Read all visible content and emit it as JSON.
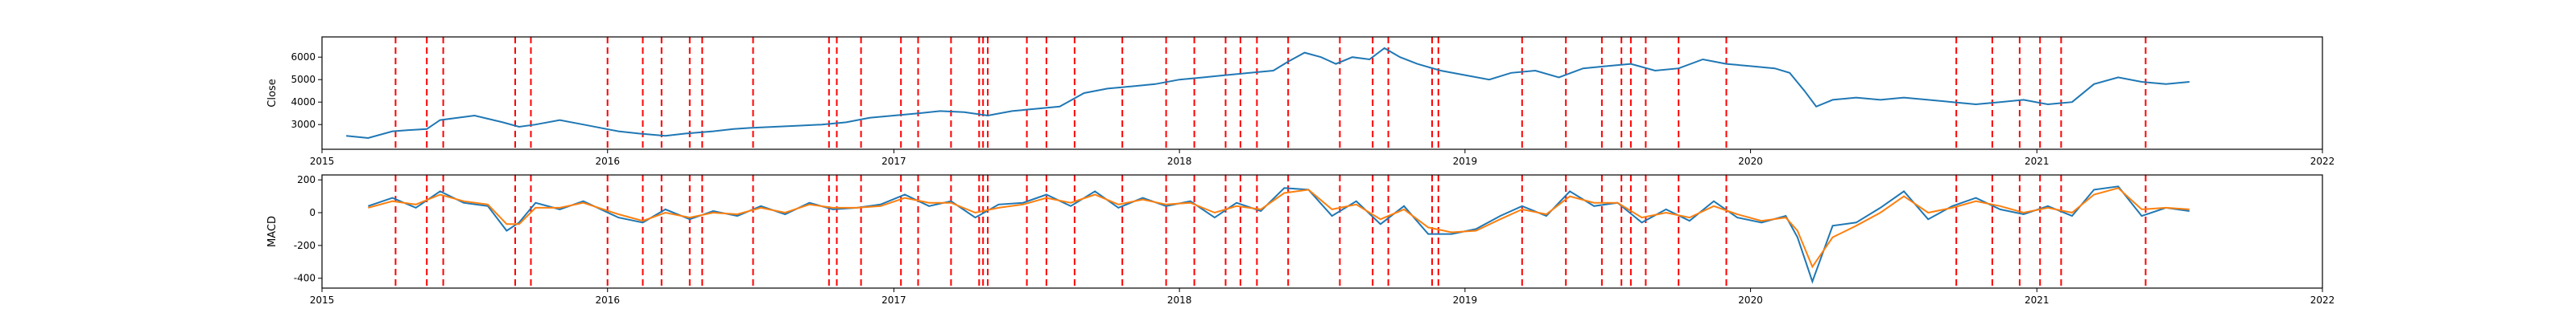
{
  "colors": {
    "close_line": "#1f77b4",
    "macd_line": "#1f77b4",
    "signal_line": "#ff7f0e",
    "event_marker": "#ff0000",
    "axes": "#000000"
  },
  "chart_data": [
    {
      "type": "line",
      "title": "",
      "xlabel": "",
      "ylabel": "Close",
      "xlim": [
        "2015-01-01",
        "2022-01-01"
      ],
      "ylim": [
        1900,
        6900
      ],
      "x_ticks": [
        "2015",
        "2016",
        "2017",
        "2018",
        "2019",
        "2020",
        "2021",
        "2022"
      ],
      "y_ticks": [
        3000,
        4000,
        5000,
        6000
      ],
      "grid": false,
      "series": [
        {
          "x": [
            "2015-02-01",
            "2015-03-01",
            "2015-04-01",
            "2015-04-20",
            "2015-05-15",
            "2015-06-01",
            "2015-07-15",
            "2015-08-20",
            "2015-09-10",
            "2015-10-01",
            "2015-11-01",
            "2015-12-01",
            "2016-01-15",
            "2016-02-10",
            "2016-03-15",
            "2016-04-10",
            "2016-05-15",
            "2016-06-10",
            "2016-07-01",
            "2016-08-01",
            "2016-09-01",
            "2016-10-01",
            "2016-11-01",
            "2016-12-01",
            "2017-01-01",
            "2017-02-01",
            "2017-03-01",
            "2017-04-01",
            "2017-05-01",
            "2017-06-01",
            "2017-07-01",
            "2017-08-01",
            "2017-09-01",
            "2017-10-01",
            "2017-11-01",
            "2017-12-01",
            "2018-01-01",
            "2018-02-01",
            "2018-03-01",
            "2018-04-01",
            "2018-05-01",
            "2018-05-20",
            "2018-06-10",
            "2018-07-01",
            "2018-07-20",
            "2018-08-10",
            "2018-09-01",
            "2018-09-20",
            "2018-10-10",
            "2018-11-01",
            "2018-12-01",
            "2019-01-01",
            "2019-02-01",
            "2019-03-01",
            "2019-04-01",
            "2019-05-01",
            "2019-06-01",
            "2019-07-01",
            "2019-08-01",
            "2019-09-01",
            "2019-10-01",
            "2019-11-01",
            "2019-12-01",
            "2020-01-01",
            "2020-02-01",
            "2020-02-20",
            "2020-03-10",
            "2020-03-25",
            "2020-04-15",
            "2020-05-15",
            "2020-06-15",
            "2020-07-15",
            "2020-08-15",
            "2020-09-15",
            "2020-10-15",
            "2020-11-15",
            "2020-12-15",
            "2021-01-15",
            "2021-02-15",
            "2021-03-15",
            "2021-04-15",
            "2021-05-15",
            "2021-06-15",
            "2021-07-15"
          ],
          "y": [
            2500,
            2400,
            2700,
            2750,
            2800,
            3200,
            3400,
            3100,
            2900,
            3000,
            3200,
            3000,
            2700,
            2600,
            2500,
            2600,
            2700,
            2800,
            2850,
            2900,
            2950,
            3000,
            3100,
            3300,
            3400,
            3500,
            3600,
            3550,
            3400,
            3600,
            3700,
            3800,
            4400,
            4600,
            4700,
            4800,
            5000,
            5100,
            5200,
            5300,
            5400,
            5800,
            6200,
            6000,
            5700,
            6000,
            5900,
            6400,
            6000,
            5700,
            5400,
            5200,
            5000,
            5300,
            5400,
            5100,
            5500,
            5600,
            5700,
            5400,
            5500,
            5900,
            5700,
            5600,
            5500,
            5300,
            4500,
            3800,
            4100,
            4200,
            4100,
            4200,
            4100,
            4000,
            3900,
            4000,
            4100,
            3900,
            4000,
            4800,
            5100,
            4900,
            4800,
            4900
          ]
        }
      ]
    },
    {
      "type": "line",
      "title": "",
      "xlabel": "",
      "ylabel": "MACD",
      "xlim": [
        "2015-01-01",
        "2022-01-01"
      ],
      "ylim": [
        -460,
        230
      ],
      "x_ticks": [
        "2015",
        "2016",
        "2017",
        "2018",
        "2019",
        "2020",
        "2021",
        "2022"
      ],
      "y_ticks": [
        -400,
        -200,
        0,
        200
      ],
      "grid": false,
      "series": [
        {
          "x": [
            "2015-03-01",
            "2015-04-01",
            "2015-05-01",
            "2015-06-01",
            "2015-07-01",
            "2015-08-01",
            "2015-08-25",
            "2015-09-10",
            "2015-10-01",
            "2015-11-01",
            "2015-12-01",
            "2016-01-15",
            "2016-02-15",
            "2016-03-15",
            "2016-04-15",
            "2016-05-15",
            "2016-06-15",
            "2016-07-15",
            "2016-08-15",
            "2016-09-15",
            "2016-10-15",
            "2016-11-15",
            "2016-12-15",
            "2017-01-15",
            "2017-02-15",
            "2017-03-15",
            "2017-04-15",
            "2017-05-15",
            "2017-06-15",
            "2017-07-15",
            "2017-08-15",
            "2017-09-15",
            "2017-10-15",
            "2017-11-15",
            "2017-12-15",
            "2018-01-15",
            "2018-02-15",
            "2018-03-15",
            "2018-04-15",
            "2018-05-15",
            "2018-06-15",
            "2018-07-15",
            "2018-08-15",
            "2018-09-15",
            "2018-10-15",
            "2018-11-15",
            "2018-12-15",
            "2019-01-15",
            "2019-02-15",
            "2019-03-15",
            "2019-04-15",
            "2019-05-15",
            "2019-06-15",
            "2019-07-15",
            "2019-08-15",
            "2019-09-15",
            "2019-10-15",
            "2019-11-15",
            "2019-12-15",
            "2020-01-15",
            "2020-02-15",
            "2020-03-01",
            "2020-03-20",
            "2020-04-15",
            "2020-05-15",
            "2020-06-15",
            "2020-07-15",
            "2020-08-15",
            "2020-09-15",
            "2020-10-15",
            "2020-11-15",
            "2020-12-15",
            "2021-01-15",
            "2021-02-15",
            "2021-03-15",
            "2021-04-15",
            "2021-05-15",
            "2021-06-15",
            "2021-07-15"
          ],
          "name": "",
          "values_key": "macd",
          "y": [
            40,
            90,
            30,
            130,
            60,
            40,
            -110,
            -60,
            60,
            20,
            70,
            -30,
            -60,
            20,
            -40,
            10,
            -20,
            40,
            -10,
            60,
            20,
            30,
            50,
            110,
            40,
            70,
            -30,
            50,
            60,
            110,
            40,
            130,
            30,
            90,
            40,
            70,
            -30,
            60,
            10,
            150,
            140,
            -20,
            70,
            -70,
            40,
            -130,
            -130,
            -100,
            -20,
            40,
            -20,
            130,
            40,
            60,
            -60,
            20,
            -50,
            70,
            -30,
            -60,
            -20,
            -150,
            -420,
            -80,
            -60,
            30,
            130,
            -40,
            40,
            90,
            20,
            -10,
            40,
            -20,
            140,
            160,
            -20,
            30,
            10
          ]
        },
        {
          "x": [
            "2015-03-01",
            "2015-04-01",
            "2015-05-01",
            "2015-06-01",
            "2015-07-01",
            "2015-08-01",
            "2015-08-25",
            "2015-09-10",
            "2015-10-01",
            "2015-11-01",
            "2015-12-01",
            "2016-01-15",
            "2016-02-15",
            "2016-03-15",
            "2016-04-15",
            "2016-05-15",
            "2016-06-15",
            "2016-07-15",
            "2016-08-15",
            "2016-09-15",
            "2016-10-15",
            "2016-11-15",
            "2016-12-15",
            "2017-01-15",
            "2017-02-15",
            "2017-03-15",
            "2017-04-15",
            "2017-05-15",
            "2017-06-15",
            "2017-07-15",
            "2017-08-15",
            "2017-09-15",
            "2017-10-15",
            "2017-11-15",
            "2017-12-15",
            "2018-01-15",
            "2018-02-15",
            "2018-03-15",
            "2018-04-15",
            "2018-05-15",
            "2018-06-15",
            "2018-07-15",
            "2018-08-15",
            "2018-09-15",
            "2018-10-15",
            "2018-11-15",
            "2018-12-15",
            "2019-01-15",
            "2019-02-15",
            "2019-03-15",
            "2019-04-15",
            "2019-05-15",
            "2019-06-15",
            "2019-07-15",
            "2019-08-15",
            "2019-09-15",
            "2019-10-15",
            "2019-11-15",
            "2019-12-15",
            "2020-01-15",
            "2020-02-15",
            "2020-03-01",
            "2020-03-20",
            "2020-04-15",
            "2020-05-15",
            "2020-06-15",
            "2020-07-15",
            "2020-08-15",
            "2020-09-15",
            "2020-10-15",
            "2020-11-15",
            "2020-12-15",
            "2021-01-15",
            "2021-02-15",
            "2021-03-15",
            "2021-04-15",
            "2021-05-15",
            "2021-06-15",
            "2021-07-15"
          ],
          "name": "",
          "values_key": "signal",
          "y": [
            30,
            70,
            50,
            110,
            70,
            50,
            -70,
            -70,
            30,
            30,
            60,
            -10,
            -50,
            0,
            -30,
            0,
            -10,
            30,
            0,
            50,
            30,
            30,
            40,
            90,
            60,
            60,
            0,
            30,
            50,
            90,
            60,
            110,
            50,
            80,
            50,
            60,
            0,
            40,
            20,
            120,
            140,
            20,
            50,
            -40,
            20,
            -90,
            -120,
            -110,
            -40,
            20,
            -10,
            100,
            60,
            60,
            -30,
            0,
            -30,
            40,
            -10,
            -50,
            -30,
            -110,
            -330,
            -150,
            -80,
            0,
            100,
            0,
            30,
            70,
            40,
            0,
            30,
            0,
            110,
            150,
            20,
            30,
            20
          ]
        }
      ]
    }
  ],
  "event_dates": [
    "2015-04-05",
    "2015-05-15",
    "2015-06-05",
    "2015-09-05",
    "2015-09-25",
    "2016-01-01",
    "2016-02-15",
    "2016-03-10",
    "2016-04-15",
    "2016-05-01",
    "2016-07-05",
    "2016-10-10",
    "2016-10-20",
    "2016-11-20",
    "2017-01-10",
    "2017-02-01",
    "2017-03-15",
    "2017-04-20",
    "2017-04-25",
    "2017-05-01",
    "2017-06-20",
    "2017-07-15",
    "2017-08-20",
    "2017-10-20",
    "2017-12-15",
    "2018-01-20",
    "2018-03-01",
    "2018-03-20",
    "2018-04-10",
    "2018-05-20",
    "2018-07-25",
    "2018-09-05",
    "2018-09-25",
    "2018-11-20",
    "2018-11-28",
    "2019-03-15",
    "2019-05-10",
    "2019-06-25",
    "2019-07-20",
    "2019-08-01",
    "2019-08-20",
    "2019-10-01",
    "2019-12-01",
    "2020-09-20",
    "2020-11-05",
    "2020-12-10",
    "2021-01-05",
    "2021-02-01",
    "2021-05-20"
  ]
}
